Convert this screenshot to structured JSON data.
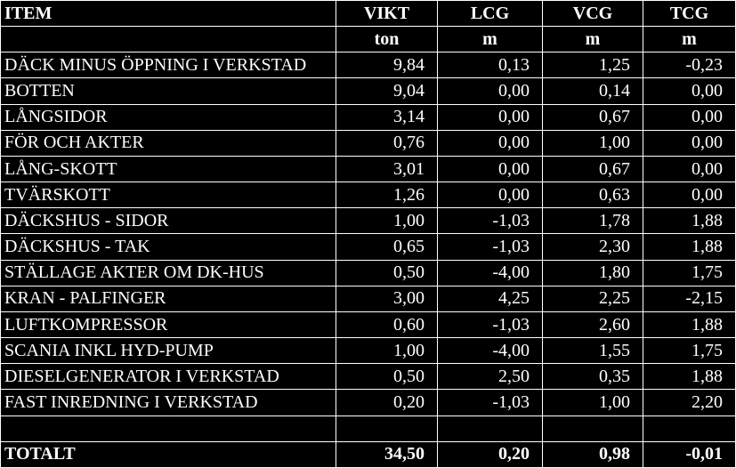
{
  "table": {
    "columns": [
      "ITEM",
      "VIKT",
      "LCG",
      "VCG",
      "TCG"
    ],
    "units": [
      "ton",
      "m",
      "m",
      "m"
    ],
    "rows": [
      [
        "DÄCK MINUS ÖPPNING I VERKSTAD",
        "9,84",
        "0,13",
        "1,25",
        "-0,23"
      ],
      [
        "BOTTEN",
        "9,04",
        "0,00",
        "0,14",
        "0,00"
      ],
      [
        "LÅNGSIDOR",
        "3,14",
        "0,00",
        "0,67",
        "0,00"
      ],
      [
        "FÖR OCH AKTER",
        "0,76",
        "0,00",
        "1,00",
        "0,00"
      ],
      [
        "LÅNG-SKOTT",
        "3,01",
        "0,00",
        "0,67",
        "0,00"
      ],
      [
        "TVÄRSKOTT",
        "1,26",
        "0,00",
        "0,63",
        "0,00"
      ],
      [
        "DÄCKSHUS - SIDOR",
        "1,00",
        "-1,03",
        "1,78",
        "1,88"
      ],
      [
        "DÄCKSHUS - TAK",
        "0,65",
        "-1,03",
        "2,30",
        "1,88"
      ],
      [
        "STÄLLAGE AKTER OM DK-HUS",
        "0,50",
        "-4,00",
        "1,80",
        "1,75"
      ],
      [
        "KRAN - PALFINGER",
        "3,00",
        "4,25",
        "2,25",
        "-2,15"
      ],
      [
        "LUFTKOMPRESSOR",
        "0,60",
        "-1,03",
        "2,60",
        "1,88"
      ],
      [
        "SCANIA INKL HYD-PUMP",
        "1,00",
        "-4,00",
        "1,55",
        "1,75"
      ],
      [
        "DIESELGENERATOR I VERKSTAD",
        "0,50",
        "2,50",
        "0,35",
        "1,88"
      ],
      [
        "FAST INREDNING I VERKSTAD",
        "0,20",
        "-1,03",
        "1,00",
        "2,20"
      ]
    ],
    "total": [
      "TOTALT",
      "34,50",
      "0,20",
      "0,98",
      "-0,01"
    ]
  }
}
